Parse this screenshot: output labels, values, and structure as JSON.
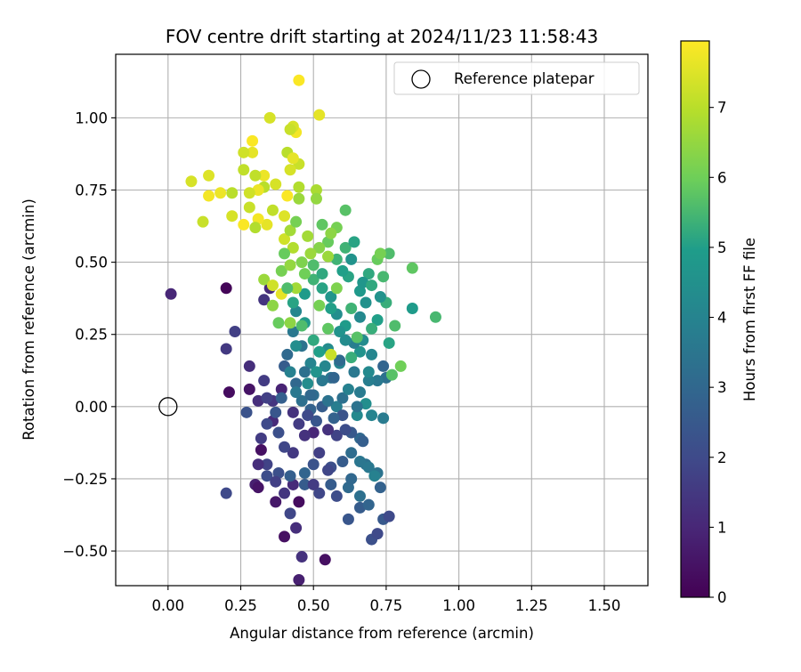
{
  "chart_data": {
    "type": "scatter",
    "title": "FOV centre drift starting at 2024/11/23 11:58:43",
    "xlabel": "Angular distance from reference (arcmin)",
    "ylabel": "Rotation from reference (arcmin)",
    "xlim": [
      -0.18,
      1.65
    ],
    "ylim": [
      -0.62,
      1.22
    ],
    "xticks": [
      0.0,
      0.25,
      0.5,
      0.75,
      1.0,
      1.25,
      1.5
    ],
    "xtick_labels": [
      "0.00",
      "0.25",
      "0.50",
      "0.75",
      "1.00",
      "1.25",
      "1.50"
    ],
    "yticks": [
      -0.5,
      -0.25,
      0.0,
      0.25,
      0.5,
      0.75,
      1.0
    ],
    "ytick_labels": [
      "−0.50",
      "−0.25",
      "0.00",
      "0.25",
      "0.50",
      "0.75",
      "1.00"
    ],
    "grid": true,
    "legend": {
      "placement": "top-right",
      "label": "Reference platepar"
    },
    "reference_point": {
      "x": 0.0,
      "y": 0.0,
      "marker": "open-circle"
    },
    "colorbar": {
      "label": "Hours from first FF file",
      "range": [
        0,
        7.95
      ],
      "ticks": [
        0,
        1,
        2,
        3,
        4,
        5,
        6,
        7
      ],
      "tick_labels": [
        "0",
        "1",
        "2",
        "3",
        "4",
        "5",
        "6",
        "7"
      ],
      "colormap": "viridis",
      "colors": [
        "#440154",
        "#482777",
        "#3f4a8a",
        "#31678e",
        "#26838f",
        "#1f9d8a",
        "#6cce5a",
        "#b6de2b",
        "#fee825"
      ]
    },
    "points": [
      [
        0.01,
        0.39,
        1.0
      ],
      [
        0.2,
        0.41,
        0.1
      ],
      [
        0.2,
        0.2,
        1.5
      ],
      [
        0.21,
        0.05,
        0.3
      ],
      [
        0.2,
        -0.3,
        2.0
      ],
      [
        0.23,
        0.26,
        1.7
      ],
      [
        0.28,
        0.06,
        0.5
      ],
      [
        0.27,
        -0.02,
        2.3
      ],
      [
        0.28,
        0.14,
        1.2
      ],
      [
        0.3,
        -0.27,
        0.8
      ],
      [
        0.31,
        -0.28,
        0.5
      ],
      [
        0.31,
        0.02,
        1.2
      ],
      [
        0.32,
        -0.15,
        0.4
      ],
      [
        0.33,
        0.09,
        1.6
      ],
      [
        0.33,
        0.37,
        1.4
      ],
      [
        0.35,
        0.41,
        1.1
      ],
      [
        0.34,
        -0.2,
        1.8
      ],
      [
        0.36,
        -0.05,
        1.1
      ],
      [
        0.37,
        -0.33,
        0.6
      ],
      [
        0.38,
        -0.23,
        2.2
      ],
      [
        0.4,
        -0.45,
        0.4
      ],
      [
        0.42,
        -0.37,
        1.9
      ],
      [
        0.44,
        -0.42,
        1.2
      ],
      [
        0.46,
        -0.52,
        1.3
      ],
      [
        0.45,
        -0.6,
        0.8
      ],
      [
        0.45,
        -0.33,
        0.3
      ],
      [
        0.47,
        -0.27,
        2.6
      ],
      [
        0.52,
        -0.3,
        1.9
      ],
      [
        0.54,
        -0.53,
        0.4
      ],
      [
        0.52,
        -0.16,
        1.7
      ],
      [
        0.56,
        -0.21,
        2.2
      ],
      [
        0.58,
        -0.31,
        2.1
      ],
      [
        0.62,
        -0.28,
        3.1
      ],
      [
        0.62,
        -0.39,
        2.4
      ],
      [
        0.66,
        -0.35,
        2.6
      ],
      [
        0.7,
        -0.46,
        2.2
      ],
      [
        0.72,
        -0.44,
        2.0
      ],
      [
        0.74,
        -0.39,
        2.5
      ],
      [
        0.76,
        -0.38,
        2.0
      ],
      [
        0.73,
        -0.28,
        2.8
      ],
      [
        0.72,
        -0.23,
        3.4
      ],
      [
        0.68,
        -0.2,
        3.3
      ],
      [
        0.66,
        -0.11,
        3.0
      ],
      [
        0.63,
        -0.09,
        2.5
      ],
      [
        0.58,
        -0.1,
        1.8
      ],
      [
        0.55,
        -0.08,
        1.3
      ],
      [
        0.5,
        -0.09,
        1.0
      ],
      [
        0.47,
        -0.1,
        1.3
      ],
      [
        0.43,
        -0.16,
        1.5
      ],
      [
        0.4,
        -0.14,
        1.9
      ],
      [
        0.38,
        -0.09,
        2.2
      ],
      [
        0.34,
        -0.06,
        2.0
      ],
      [
        0.36,
        0.02,
        1.4
      ],
      [
        0.39,
        0.06,
        0.9
      ],
      [
        0.4,
        0.14,
        2.6
      ],
      [
        0.44,
        0.08,
        3.0
      ],
      [
        0.46,
        0.02,
        3.3
      ],
      [
        0.49,
        -0.01,
        2.8
      ],
      [
        0.5,
        0.04,
        3.2
      ],
      [
        0.53,
        0.09,
        3.6
      ],
      [
        0.56,
        0.1,
        3.5
      ],
      [
        0.58,
        0.0,
        3.8
      ],
      [
        0.6,
        0.03,
        3.3
      ],
      [
        0.62,
        0.06,
        3.9
      ],
      [
        0.65,
        -0.03,
        4.2
      ],
      [
        0.68,
        0.01,
        4.4
      ],
      [
        0.7,
        -0.03,
        4.0
      ],
      [
        0.74,
        -0.04,
        3.7
      ],
      [
        0.75,
        0.1,
        3.3
      ],
      [
        0.74,
        0.14,
        2.9
      ],
      [
        0.72,
        0.09,
        3.6
      ],
      [
        0.7,
        0.18,
        4.1
      ],
      [
        0.66,
        0.19,
        4.6
      ],
      [
        0.64,
        0.22,
        3.8
      ],
      [
        0.61,
        0.28,
        4.9
      ],
      [
        0.58,
        0.32,
        4.4
      ],
      [
        0.56,
        0.38,
        4.7
      ],
      [
        0.53,
        0.41,
        5.1
      ],
      [
        0.5,
        0.44,
        5.4
      ],
      [
        0.47,
        0.39,
        4.9
      ],
      [
        0.44,
        0.33,
        4.1
      ],
      [
        0.43,
        0.26,
        3.6
      ],
      [
        0.41,
        0.18,
        3.1
      ],
      [
        0.46,
        0.21,
        3.4
      ],
      [
        0.49,
        0.15,
        4.0
      ],
      [
        0.55,
        0.2,
        4.3
      ],
      [
        0.59,
        0.15,
        4.0
      ],
      [
        0.64,
        0.12,
        3.6
      ],
      [
        0.67,
        0.23,
        4.3
      ],
      [
        0.72,
        0.3,
        5.0
      ],
      [
        0.75,
        0.36,
        5.3
      ],
      [
        0.78,
        0.28,
        5.6
      ],
      [
        0.8,
        0.14,
        6.0
      ],
      [
        0.77,
        0.11,
        5.7
      ],
      [
        0.84,
        0.34,
        4.9
      ],
      [
        0.92,
        0.31,
        5.5
      ],
      [
        0.84,
        0.48,
        5.8
      ],
      [
        0.76,
        0.53,
        5.6
      ],
      [
        0.72,
        0.51,
        5.9
      ],
      [
        0.69,
        0.46,
        5.2
      ],
      [
        0.66,
        0.4,
        4.8
      ],
      [
        0.62,
        0.45,
        5.1
      ],
      [
        0.58,
        0.51,
        5.4
      ],
      [
        0.55,
        0.57,
        5.9
      ],
      [
        0.52,
        0.55,
        6.3
      ],
      [
        0.49,
        0.53,
        6.6
      ],
      [
        0.46,
        0.5,
        6.2
      ],
      [
        0.43,
        0.55,
        6.9
      ],
      [
        0.4,
        0.58,
        7.3
      ],
      [
        0.42,
        0.61,
        6.7
      ],
      [
        0.44,
        0.64,
        6.1
      ],
      [
        0.4,
        0.66,
        7.5
      ],
      [
        0.36,
        0.68,
        7.1
      ],
      [
        0.34,
        0.63,
        7.6
      ],
      [
        0.31,
        0.65,
        7.8
      ],
      [
        0.28,
        0.69,
        7.2
      ],
      [
        0.26,
        0.63,
        7.9
      ],
      [
        0.22,
        0.66,
        7.4
      ],
      [
        0.22,
        0.74,
        7.0
      ],
      [
        0.18,
        0.74,
        7.7
      ],
      [
        0.14,
        0.73,
        7.8
      ],
      [
        0.14,
        0.8,
        7.5
      ],
      [
        0.08,
        0.78,
        7.4
      ],
      [
        0.12,
        0.64,
        7.2
      ],
      [
        0.26,
        0.82,
        7.1
      ],
      [
        0.29,
        0.88,
        7.6
      ],
      [
        0.26,
        0.88,
        7.3
      ],
      [
        0.29,
        0.92,
        7.9
      ],
      [
        0.33,
        0.8,
        7.7
      ],
      [
        0.33,
        0.76,
        7.0
      ],
      [
        0.37,
        0.77,
        7.4
      ],
      [
        0.41,
        0.73,
        7.9
      ],
      [
        0.45,
        0.76,
        6.9
      ],
      [
        0.45,
        0.72,
        6.6
      ],
      [
        0.51,
        0.75,
        6.8
      ],
      [
        0.51,
        0.72,
        6.5
      ],
      [
        0.45,
        0.84,
        7.2
      ],
      [
        0.42,
        0.82,
        7.4
      ],
      [
        0.41,
        0.88,
        7.0
      ],
      [
        0.43,
        0.86,
        7.6
      ],
      [
        0.44,
        0.95,
        7.8
      ],
      [
        0.43,
        0.97,
        7.4
      ],
      [
        0.42,
        0.96,
        7.2
      ],
      [
        0.35,
        1.0,
        7.4
      ],
      [
        0.52,
        1.01,
        7.6
      ],
      [
        0.45,
        1.13,
        7.9
      ],
      [
        0.3,
        0.8,
        7.1
      ],
      [
        0.31,
        0.75,
        7.7
      ],
      [
        0.28,
        0.74,
        7.3
      ],
      [
        0.3,
        0.62,
        6.9
      ],
      [
        0.33,
        0.44,
        6.6
      ],
      [
        0.36,
        0.42,
        7.3
      ],
      [
        0.39,
        0.39,
        7.6
      ],
      [
        0.36,
        0.35,
        6.4
      ],
      [
        0.38,
        0.29,
        5.9
      ],
      [
        0.42,
        0.29,
        6.4
      ],
      [
        0.44,
        0.41,
        6.7
      ],
      [
        0.47,
        0.46,
        6.0
      ],
      [
        0.5,
        0.49,
        5.6
      ],
      [
        0.53,
        0.46,
        5.2
      ],
      [
        0.56,
        0.34,
        5.0
      ],
      [
        0.59,
        0.26,
        4.6
      ],
      [
        0.61,
        0.23,
        4.3
      ],
      [
        0.61,
        0.68,
        5.7
      ],
      [
        0.58,
        0.62,
        6.1
      ],
      [
        0.56,
        0.6,
        6.4
      ],
      [
        0.55,
        0.52,
        6.6
      ],
      [
        0.61,
        0.55,
        5.4
      ],
      [
        0.64,
        0.57,
        5.1
      ],
      [
        0.67,
        0.43,
        4.7
      ],
      [
        0.7,
        0.42,
        5.2
      ],
      [
        0.74,
        0.45,
        5.5
      ],
      [
        0.73,
        0.53,
        6.1
      ],
      [
        0.73,
        0.38,
        4.6
      ],
      [
        0.76,
        0.22,
        5.1
      ],
      [
        0.68,
        0.36,
        4.5
      ],
      [
        0.66,
        0.31,
        4.2
      ],
      [
        0.63,
        0.34,
        5.4
      ],
      [
        0.55,
        0.27,
        5.8
      ],
      [
        0.52,
        0.19,
        5.0
      ],
      [
        0.47,
        0.29,
        4.8
      ],
      [
        0.44,
        0.21,
        4.4
      ],
      [
        0.42,
        0.12,
        3.9
      ],
      [
        0.47,
        0.12,
        3.3
      ],
      [
        0.49,
        0.04,
        3.0
      ],
      [
        0.53,
        0.0,
        2.6
      ],
      [
        0.51,
        -0.05,
        2.4
      ],
      [
        0.48,
        -0.03,
        2.0
      ],
      [
        0.45,
        -0.06,
        1.6
      ],
      [
        0.43,
        -0.02,
        1.3
      ],
      [
        0.5,
        -0.2,
        2.3
      ],
      [
        0.55,
        -0.22,
        1.9
      ],
      [
        0.6,
        -0.19,
        2.6
      ],
      [
        0.63,
        -0.16,
        3.2
      ],
      [
        0.66,
        -0.19,
        3.5
      ],
      [
        0.69,
        -0.21,
        3.6
      ],
      [
        0.71,
        -0.24,
        3.9
      ],
      [
        0.67,
        -0.12,
        2.7
      ],
      [
        0.61,
        -0.08,
        2.1
      ],
      [
        0.6,
        -0.03,
        2.3
      ],
      [
        0.57,
        -0.04,
        2.8
      ],
      [
        0.55,
        0.02,
        3.4
      ],
      [
        0.65,
        0.0,
        3.4
      ],
      [
        0.66,
        0.05,
        3.7
      ],
      [
        0.69,
        0.09,
        3.8
      ],
      [
        0.59,
        0.16,
        3.1
      ],
      [
        0.57,
        0.1,
        2.9
      ],
      [
        0.54,
        0.14,
        4.1
      ],
      [
        0.51,
        0.12,
        4.6
      ],
      [
        0.48,
        0.08,
        4.3
      ],
      [
        0.44,
        0.05,
        3.6
      ],
      [
        0.39,
        0.03,
        2.7
      ],
      [
        0.37,
        -0.02,
        2.4
      ],
      [
        0.34,
        0.03,
        1.7
      ],
      [
        0.32,
        -0.11,
        1.6
      ],
      [
        0.31,
        -0.2,
        1.2
      ],
      [
        0.34,
        -0.24,
        2.1
      ],
      [
        0.37,
        -0.26,
        1.7
      ],
      [
        0.4,
        -0.3,
        1.4
      ],
      [
        0.43,
        -0.27,
        1.1
      ],
      [
        0.42,
        -0.24,
        2.7
      ],
      [
        0.47,
        -0.23,
        2.9
      ],
      [
        0.5,
        -0.27,
        1.6
      ],
      [
        0.56,
        -0.27,
        2.6
      ],
      [
        0.63,
        -0.25,
        3.0
      ],
      [
        0.66,
        -0.31,
        3.3
      ],
      [
        0.69,
        -0.34,
        2.9
      ],
      [
        0.63,
        0.17,
        5.3
      ],
      [
        0.65,
        0.24,
        5.7
      ],
      [
        0.7,
        0.27,
        5.3
      ],
      [
        0.69,
        0.12,
        4.2
      ],
      [
        0.56,
        0.18,
        7.2
      ],
      [
        0.58,
        0.41,
        6.2
      ],
      [
        0.6,
        0.47,
        5.0
      ],
      [
        0.63,
        0.51,
        4.6
      ],
      [
        0.52,
        0.35,
        6.1
      ],
      [
        0.5,
        0.23,
        5.2
      ],
      [
        0.46,
        0.28,
        5.6
      ],
      [
        0.43,
        0.36,
        5.1
      ],
      [
        0.41,
        0.41,
        5.6
      ],
      [
        0.39,
        0.47,
        6.1
      ],
      [
        0.42,
        0.49,
        6.5
      ],
      [
        0.4,
        0.53,
        5.9
      ],
      [
        0.48,
        0.59,
        6.7
      ],
      [
        0.53,
        0.63,
        5.8
      ]
    ]
  }
}
